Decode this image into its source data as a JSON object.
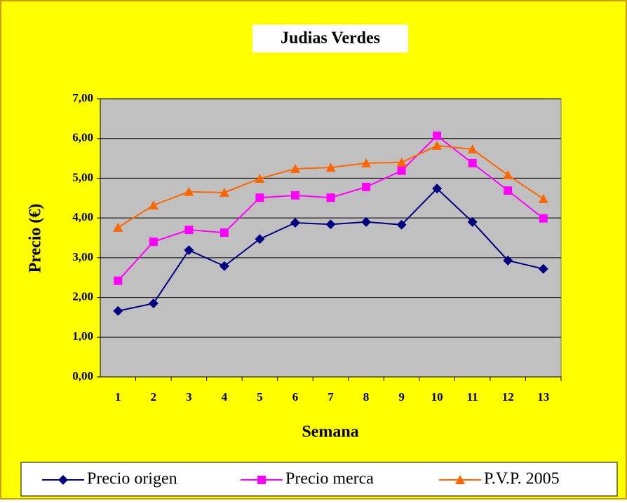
{
  "chart_data": {
    "type": "line",
    "title": "Judias Verdes",
    "x_label": "Semana",
    "y_label": "Precio (€)",
    "categories": [
      "1",
      "2",
      "3",
      "4",
      "5",
      "6",
      "7",
      "8",
      "9",
      "10",
      "11",
      "12",
      "13"
    ],
    "series": [
      {
        "name": "Precio origen",
        "color": "#000080",
        "marker": "diamond",
        "values": [
          1.66,
          1.85,
          3.19,
          2.79,
          3.47,
          3.88,
          3.84,
          3.9,
          3.83,
          4.74,
          3.9,
          2.93,
          2.72
        ]
      },
      {
        "name": "Precio merca",
        "color": "#ff00ff",
        "marker": "square",
        "values": [
          2.42,
          3.4,
          3.7,
          3.63,
          4.51,
          4.57,
          4.51,
          4.78,
          5.19,
          6.07,
          5.38,
          4.69,
          3.99
        ]
      },
      {
        "name": "P.V.P. 2005",
        "color": "#ff6600",
        "marker": "triangle",
        "values": [
          3.76,
          4.32,
          4.66,
          4.64,
          4.99,
          5.24,
          5.27,
          5.38,
          5.4,
          5.82,
          5.73,
          5.08,
          4.48
        ]
      }
    ],
    "ylim": [
      0,
      7
    ],
    "yticks": [
      {
        "value": 0,
        "label": "0,00"
      },
      {
        "value": 1,
        "label": "1,00"
      },
      {
        "value": 2,
        "label": "2,00"
      },
      {
        "value": 3,
        "label": "3,00"
      },
      {
        "value": 4,
        "label": "4,00"
      },
      {
        "value": 5,
        "label": "5,00"
      },
      {
        "value": 6,
        "label": "6,00"
      },
      {
        "value": 7,
        "label": "7,00"
      }
    ],
    "grid": true,
    "legend": "bottom"
  }
}
